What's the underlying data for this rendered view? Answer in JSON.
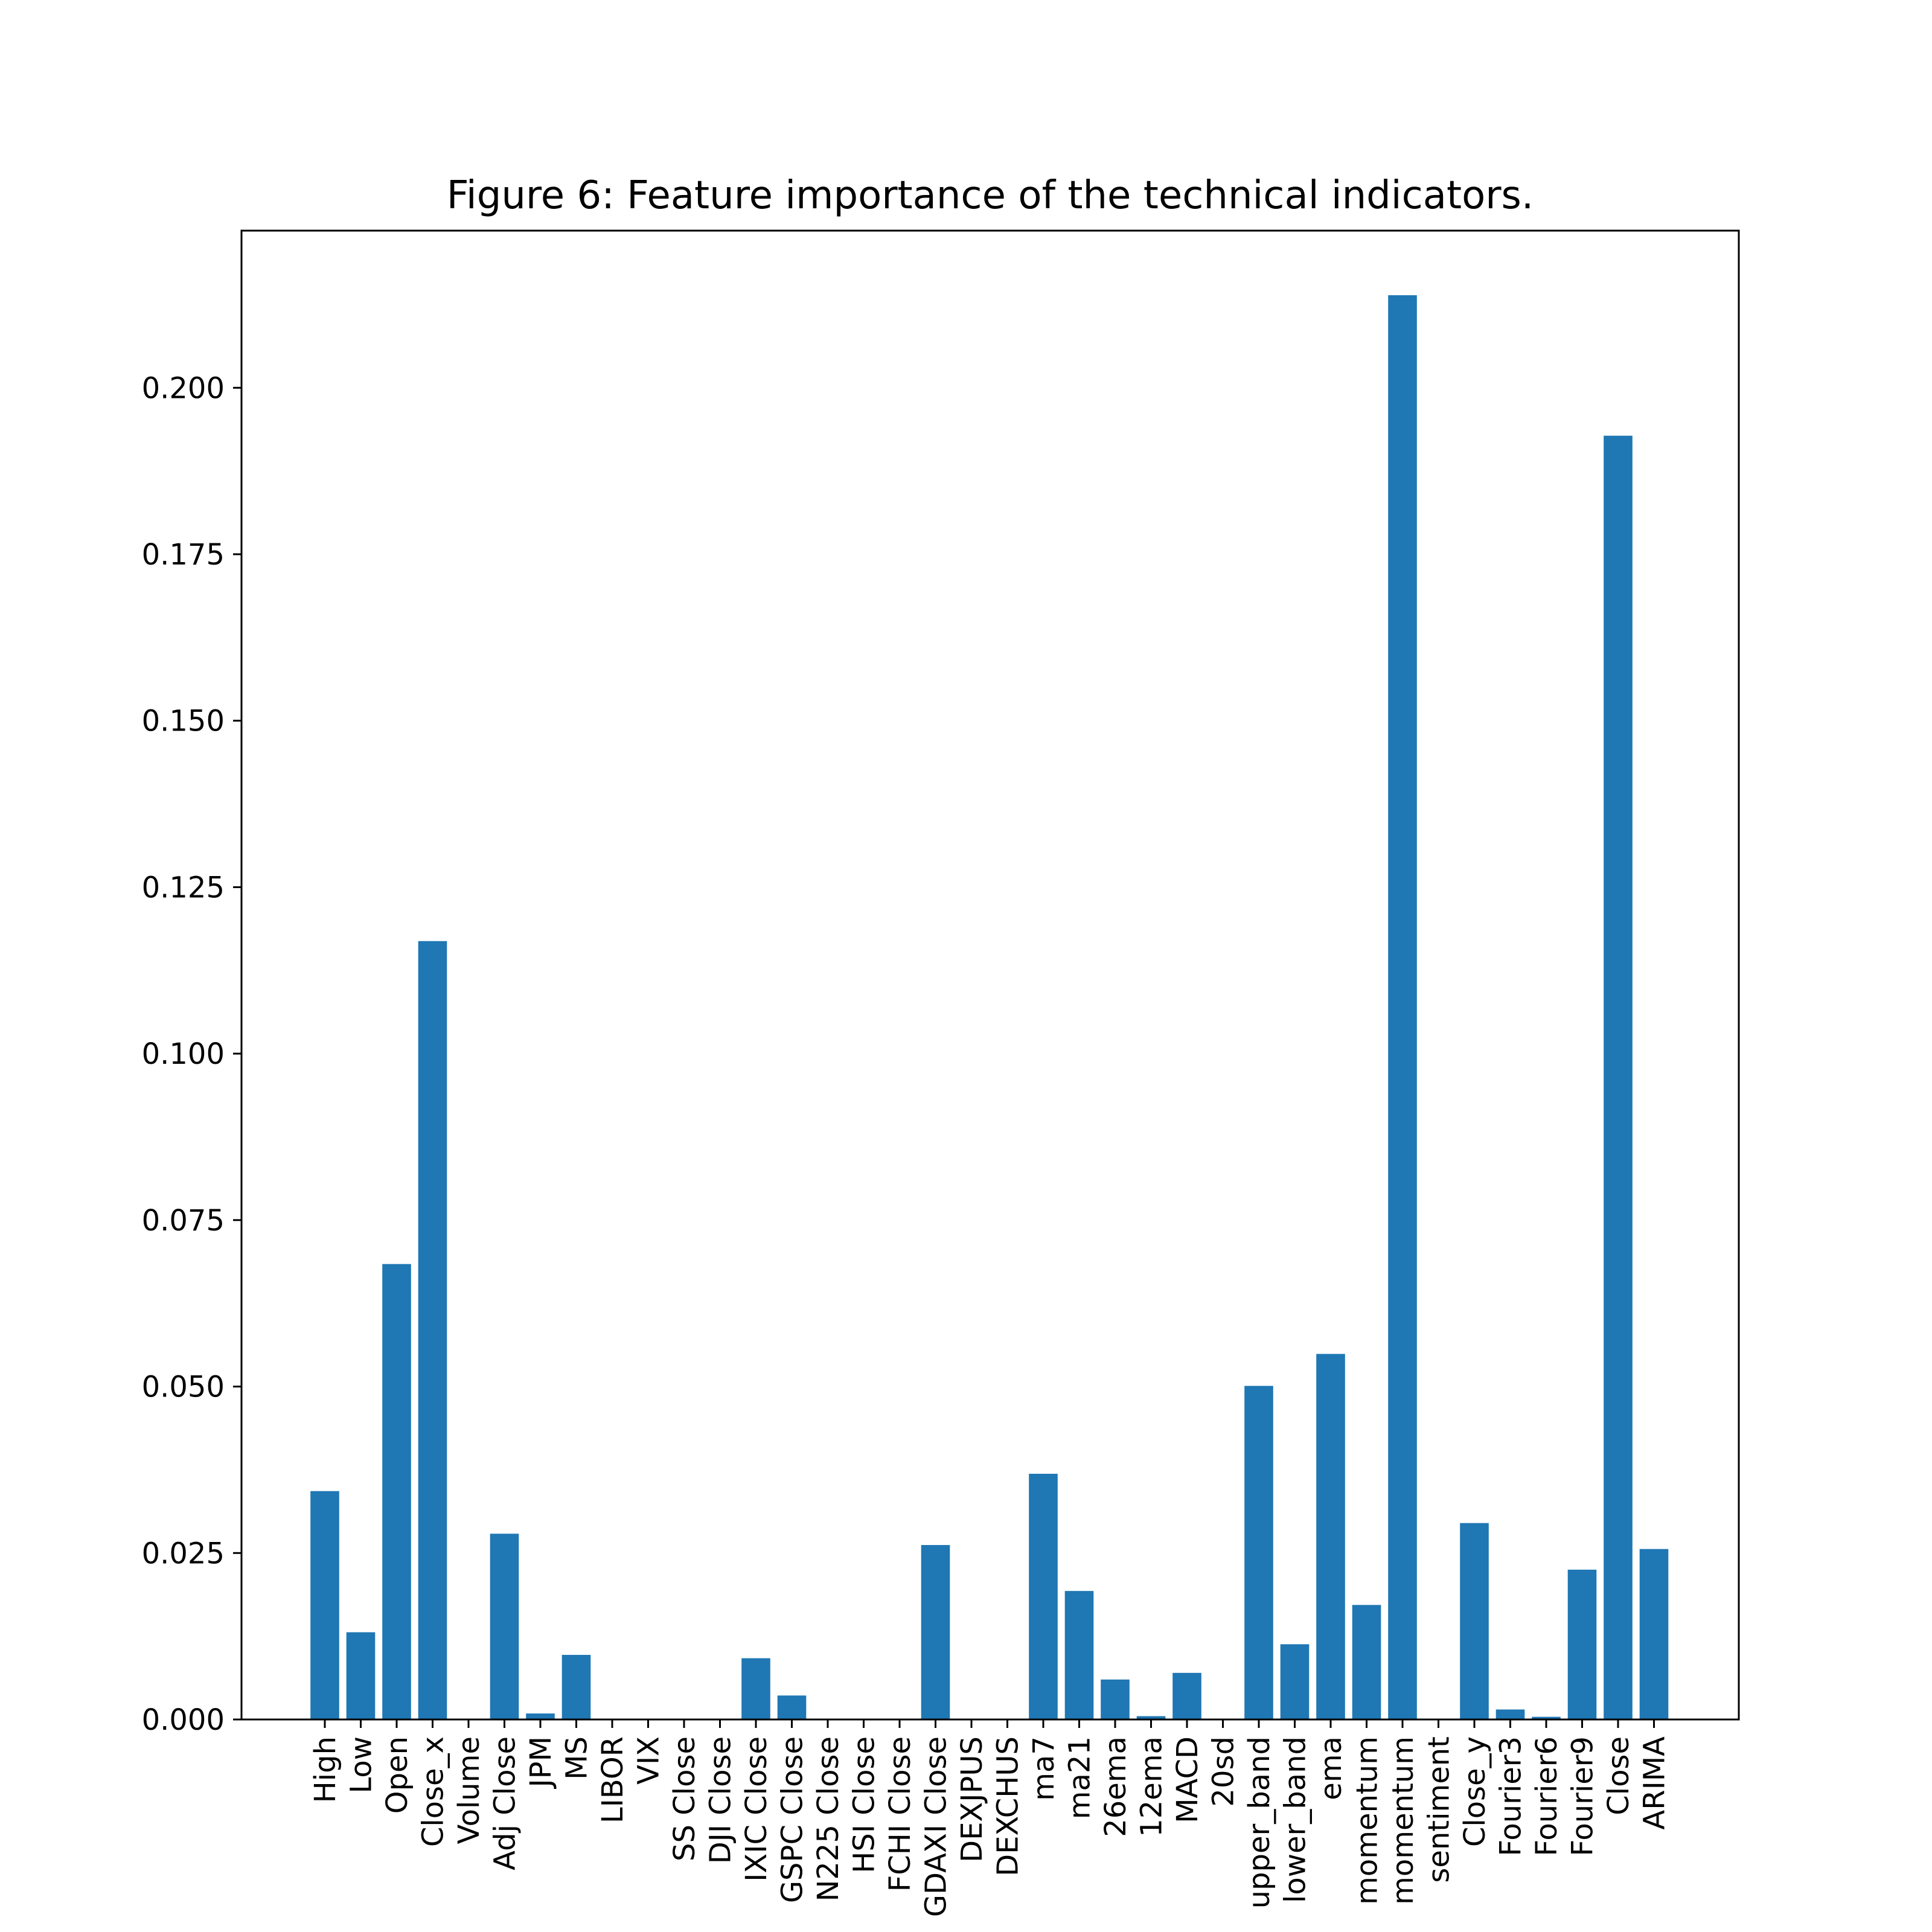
{
  "chart_data": {
    "type": "bar",
    "title": "Figure 6: Feature importance of the technical indicators.",
    "xlabel": "",
    "ylabel": "",
    "ylim": [
      0,
      0.2236
    ],
    "yticks": [
      0.0,
      0.025,
      0.05,
      0.075,
      0.1,
      0.125,
      0.15,
      0.175,
      0.2
    ],
    "ytick_labels": [
      "0.000",
      "0.025",
      "0.050",
      "0.075",
      "0.100",
      "0.125",
      "0.150",
      "0.175",
      "0.200"
    ],
    "bar_color": "#1f77b4",
    "grid": false,
    "legend": "none",
    "categories": [
      "High",
      "Low",
      "Open",
      "Close_x",
      "Volume",
      "Adj Close",
      "JPM",
      "MS",
      "LIBOR",
      "VIX",
      "SS Close",
      "DJI Close",
      "IXIC Close",
      "GSPC Close",
      "N225 Close",
      "HSI Close",
      "FCHI Close",
      "GDAXI Close",
      "DEXJPUS",
      "DEXCHUS",
      "ma7",
      "ma21",
      "26ema",
      "12ema",
      "MACD",
      "20sd",
      "upper_band",
      "lower_band",
      "ema",
      "momentum",
      "momentum",
      "sentiment",
      "Close_y",
      "Fourier3",
      "Fourier6",
      "Fourier9",
      "Close",
      "ARIMA"
    ],
    "values": [
      0.0343,
      0.0131,
      0.0684,
      0.1169,
      0.0,
      0.0279,
      0.0009,
      0.0097,
      0.0,
      0.0,
      0.0,
      0.0,
      0.0092,
      0.0036,
      0.0,
      0.0,
      0.0,
      0.0262,
      0.0,
      0.0,
      0.0369,
      0.0193,
      0.006,
      0.0005,
      0.007,
      0.0,
      0.0501,
      0.0113,
      0.0549,
      0.0172,
      0.2139,
      0.0,
      0.0295,
      0.0015,
      0.0004,
      0.0225,
      0.1928,
      0.0256
    ]
  }
}
